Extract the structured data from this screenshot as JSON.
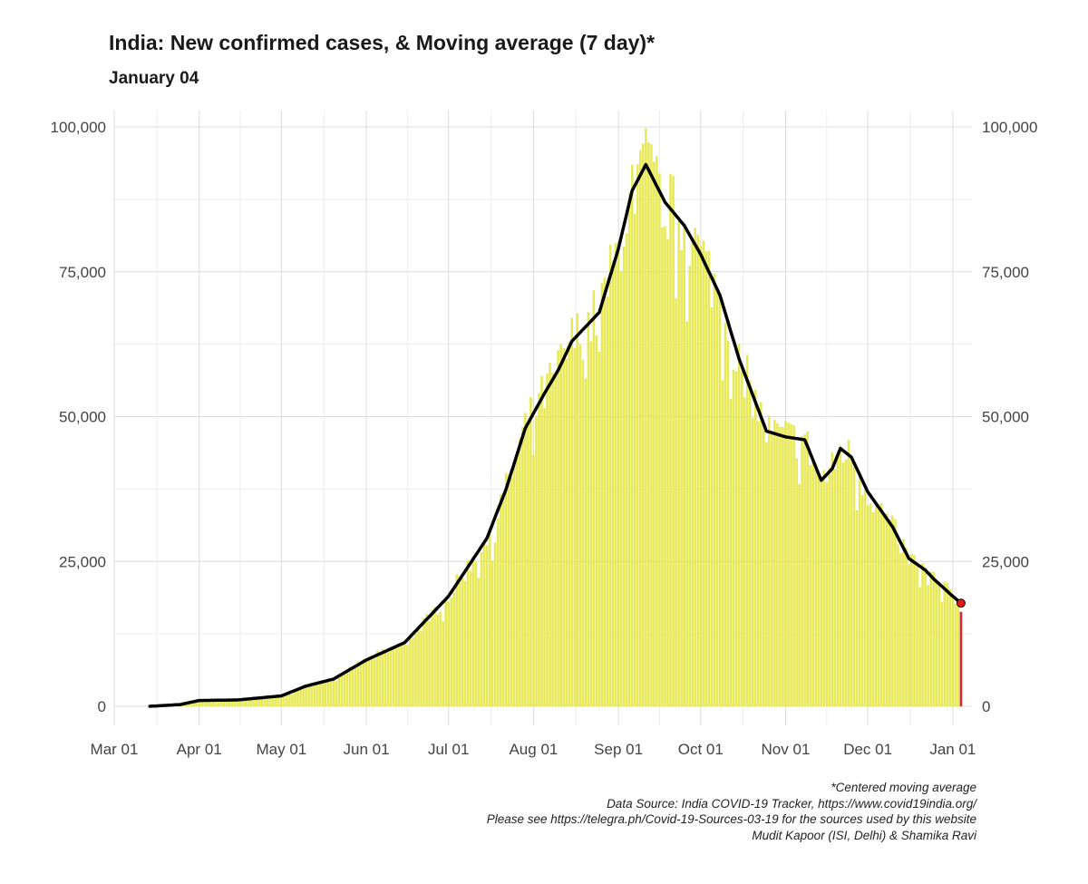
{
  "chart_data": {
    "type": "bar",
    "title": "India: New confirmed cases, & Moving average (7 day)*",
    "subtitle": "January 04",
    "xlabel": "",
    "ylabel": "",
    "x_start": "2020-03-01",
    "x_end": "2021-01-08",
    "x_ticks": [
      "Mar 01",
      "Apr 01",
      "May 01",
      "Jun 01",
      "Jul 01",
      "Aug 01",
      "Sep 01",
      "Oct 01",
      "Nov 01",
      "Dec 01",
      "Jan 01"
    ],
    "y_ticks": [
      "0",
      "25,000",
      "50,000",
      "75,000",
      "100,000"
    ],
    "ylim": [
      0,
      100000
    ],
    "grid": true,
    "y_axis_both_sides": true,
    "series": [
      {
        "kind": "bar",
        "date_start": "2020-03-14",
        "date_end": "2021-01-03",
        "values_note": "daily new confirmed cases",
        "color": "#e4e53a",
        "values": []
      },
      {
        "kind": "bar",
        "date": "2021-01-04",
        "value": 16300,
        "color": "#d62728"
      },
      {
        "kind": "line",
        "date_start": "2020-03-14",
        "date_end": "2021-01-04",
        "color": "#000000",
        "anchors": [
          [
            "2020-03-14",
            0
          ],
          [
            "2020-03-25",
            300
          ],
          [
            "2020-04-01",
            1000
          ],
          [
            "2020-04-15",
            1100
          ],
          [
            "2020-05-01",
            1800
          ],
          [
            "2020-05-10",
            3500
          ],
          [
            "2020-05-20",
            4700
          ],
          [
            "2020-06-01",
            8000
          ],
          [
            "2020-06-15",
            11000
          ],
          [
            "2020-07-01",
            19000
          ],
          [
            "2020-07-15",
            29000
          ],
          [
            "2020-07-22",
            37500
          ],
          [
            "2020-07-29",
            48000
          ],
          [
            "2020-08-05",
            54000
          ],
          [
            "2020-08-10",
            58000
          ],
          [
            "2020-08-15",
            63000
          ],
          [
            "2020-08-25",
            68000
          ],
          [
            "2020-09-01",
            79000
          ],
          [
            "2020-09-06",
            89000
          ],
          [
            "2020-09-11",
            93500
          ],
          [
            "2020-09-18",
            87000
          ],
          [
            "2020-09-25",
            83000
          ],
          [
            "2020-10-01",
            78000
          ],
          [
            "2020-10-08",
            71000
          ],
          [
            "2020-10-15",
            60000
          ],
          [
            "2020-10-25",
            47500
          ],
          [
            "2020-11-01",
            46500
          ],
          [
            "2020-11-08",
            46000
          ],
          [
            "2020-11-14",
            39000
          ],
          [
            "2020-11-18",
            41000
          ],
          [
            "2020-11-21",
            44500
          ],
          [
            "2020-11-25",
            43000
          ],
          [
            "2020-12-01",
            37000
          ],
          [
            "2020-12-10",
            31000
          ],
          [
            "2020-12-16",
            25500
          ],
          [
            "2020-12-22",
            23500
          ],
          [
            "2020-12-25",
            22000
          ],
          [
            "2021-01-01",
            19000
          ],
          [
            "2021-01-04",
            17800
          ]
        ]
      }
    ],
    "endpoint_marker": {
      "date": "2021-01-04",
      "value": 17800,
      "color": "#e31a1c"
    },
    "caption": [
      "*Centered moving average",
      "Data Source: India COVID-19 Tracker, https://www.covid19india.org/",
      "Please see https://telegra.ph/Covid-19-Sources-03-19 for the sources used by this website",
      "Mudit Kapoor (ISI, Delhi) & Shamika Ravi"
    ]
  }
}
